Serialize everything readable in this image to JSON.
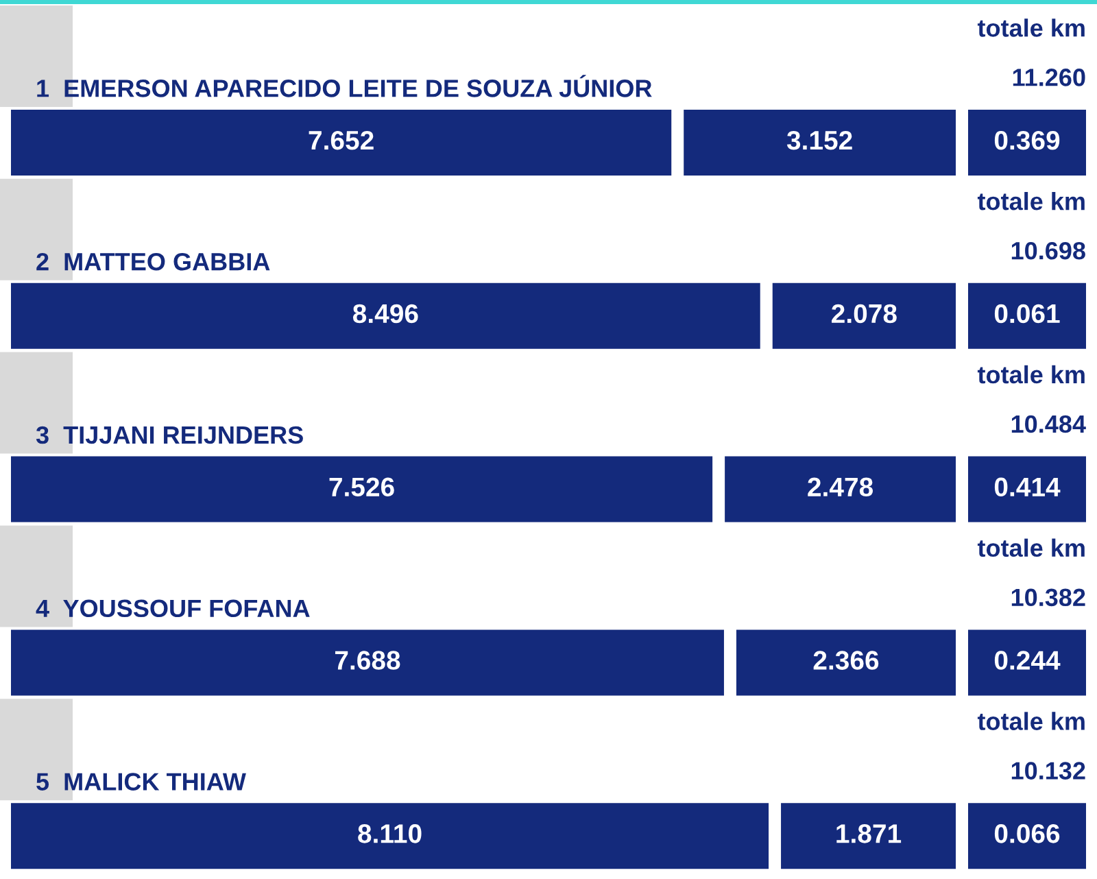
{
  "chart_data": {
    "type": "other",
    "categories": [
      "1  EMERSON APARECIDO LEITE DE SOUZA JÚNIOR",
      "2  MATTEO GABBIA",
      "3  TIJJANI REIJNDERS",
      "4  YOUSSOUF FOFANA",
      "5  MALICK THIAW"
    ],
    "series": [
      {
        "color": "#142a7c",
        "values": [
          7.652,
          8.496,
          7.526,
          7.688,
          8.11
        ],
        "value_labels": [
          "7.652",
          "8.496",
          "7.526",
          "7.688",
          "8.110"
        ]
      },
      {
        "color": "#142a7c",
        "values": [
          3.152,
          2.078,
          2.478,
          2.366,
          1.871
        ],
        "value_labels": [
          "3.152",
          "2.078",
          "2.478",
          "2.366",
          "1.871"
        ]
      },
      {
        "color": "#142a7c",
        "values": [
          0.369,
          0.061,
          0.414,
          0.244,
          0.066
        ],
        "value_labels": [
          "0.369",
          "0.061",
          "0.414",
          "0.244",
          "0.066"
        ]
      }
    ],
    "totals": [
      "11.260",
      "10.698",
      "10.484",
      "10.382",
      "10.132"
    ],
    "annotations": [
      "totale km",
      "totale km",
      "totale km",
      "totale km",
      "totale km"
    ],
    "data_labels": true
  }
}
